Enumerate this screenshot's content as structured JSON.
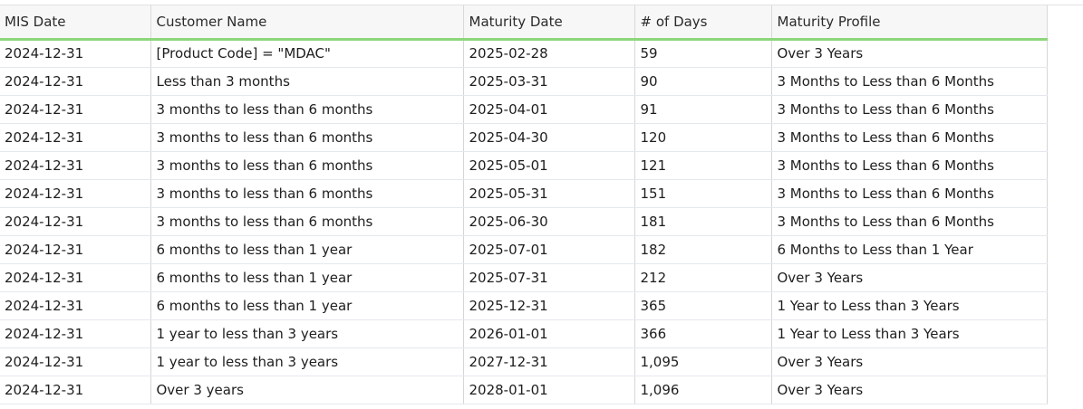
{
  "columns": [
    "MIS Date",
    "Customer Name",
    "Maturity Date",
    "# of Days",
    "Maturity Profile"
  ],
  "rows": [
    [
      "2024-12-31",
      "[Product Code] = \"MDAC\"",
      "2025-02-28",
      "59",
      "Over 3 Years"
    ],
    [
      "2024-12-31",
      "Less than 3 months",
      "2025-03-31",
      "90",
      "3 Months to Less than 6 Months"
    ],
    [
      "2024-12-31",
      "3 months to less than 6 months",
      "2025-04-01",
      "91",
      "3 Months to Less than 6 Months"
    ],
    [
      "2024-12-31",
      "3 months to less than 6 months",
      "2025-04-30",
      "120",
      "3 Months to Less than 6 Months"
    ],
    [
      "2024-12-31",
      "3 months to less than 6 months",
      "2025-05-01",
      "121",
      "3 Months to Less than 6 Months"
    ],
    [
      "2024-12-31",
      "3 months to less than 6 months",
      "2025-05-31",
      "151",
      "3 Months to Less than 6 Months"
    ],
    [
      "2024-12-31",
      "3 months to less than 6 months",
      "2025-06-30",
      "181",
      "3 Months to Less than 6 Months"
    ],
    [
      "2024-12-31",
      "6 months to less than 1 year",
      "2025-07-01",
      "182",
      "6 Months to Less than 1 Year"
    ],
    [
      "2024-12-31",
      "6 months to less than 1 year",
      "2025-07-31",
      "212",
      "Over 3 Years"
    ],
    [
      "2024-12-31",
      "6 months to less than 1 year",
      "2025-12-31",
      "365",
      "1 Year to Less than 3 Years"
    ],
    [
      "2024-12-31",
      "1 year to less than 3 years",
      "2026-01-01",
      "366",
      "1 Year to Less than 3 Years"
    ],
    [
      "2024-12-31",
      "1 year to less than 3 years",
      "2027-12-31",
      "1,095",
      "Over 3 Years"
    ],
    [
      "2024-12-31",
      "Over 3 years",
      "2028-01-01",
      "1,096",
      "Over 3 Years"
    ]
  ]
}
